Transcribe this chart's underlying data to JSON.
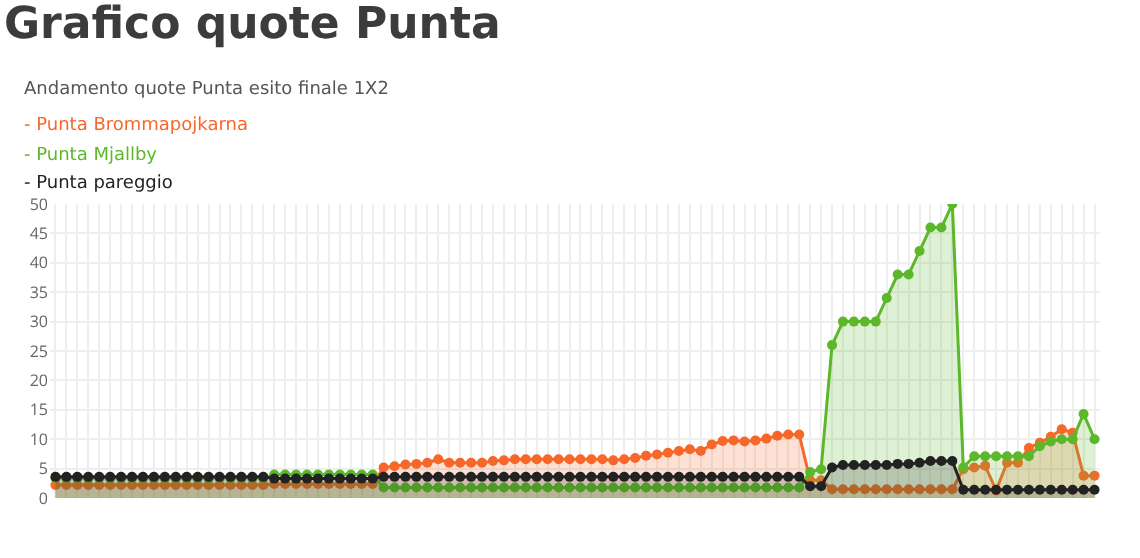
{
  "chart_data": {
    "type": "area",
    "title": "Grafico quote Punta",
    "subtitle": "Andamento quote Punta esito finale 1X2",
    "categories": [
      null,
      null,
      null,
      null,
      null,
      null,
      null,
      null,
      null,
      null,
      null,
      null,
      null,
      null,
      null,
      null,
      null,
      null,
      null,
      null,
      null,
      null,
      null,
      null,
      null,
      null,
      null,
      null,
      null,
      null,
      null,
      null,
      null,
      null,
      null,
      null,
      null,
      null,
      null,
      null,
      null,
      null,
      null,
      null,
      null,
      null,
      null,
      null,
      null,
      null,
      null,
      null,
      null,
      null,
      null,
      null,
      null,
      null,
      null,
      null,
      null,
      null,
      null,
      null,
      null,
      null,
      null,
      null,
      null,
      null,
      null,
      null,
      null,
      null,
      null,
      null,
      null,
      null,
      null,
      null,
      null,
      null,
      null,
      null,
      null,
      null,
      null,
      null,
      null,
      null,
      null,
      null,
      null,
      null,
      null,
      null
    ],
    "series": [
      {
        "name": "- Punta Brommapojkarna",
        "color": "#f7672a",
        "values": [
          2.2,
          2.2,
          2.2,
          2.2,
          2.2,
          2.2,
          2.2,
          2.2,
          2.2,
          2.2,
          2.2,
          2.2,
          2.2,
          2.2,
          2.2,
          2.2,
          2.2,
          2.2,
          2.2,
          2.2,
          2.4,
          2.4,
          2.4,
          2.4,
          2.4,
          2.4,
          2.4,
          2.4,
          2.4,
          2.4,
          5.2,
          5.4,
          5.7,
          5.8,
          6.0,
          6.6,
          6.0,
          6.0,
          6.0,
          6.0,
          6.3,
          6.4,
          6.6,
          6.6,
          6.6,
          6.6,
          6.6,
          6.6,
          6.6,
          6.6,
          6.6,
          6.4,
          6.6,
          6.8,
          7.2,
          7.4,
          7.7,
          8.0,
          8.3,
          8.0,
          9.1,
          9.7,
          9.8,
          9.6,
          9.8,
          10.1,
          10.6,
          10.8,
          10.8,
          3.0,
          3.0,
          1.5,
          1.5,
          1.5,
          1.5,
          1.5,
          1.5,
          1.5,
          1.5,
          1.5,
          1.5,
          1.5,
          1.5,
          4.9,
          5.2,
          5.5,
          1.3,
          6.0,
          6.0,
          8.5,
          9.4,
          10.4,
          11.7,
          11.1,
          3.8,
          3.8
        ]
      },
      {
        "name": "- Punta Mjallby",
        "color": "#5cb82a",
        "values": [
          3.4,
          3.4,
          3.4,
          3.4,
          3.4,
          3.4,
          3.4,
          3.4,
          3.4,
          3.4,
          3.4,
          3.4,
          3.4,
          3.4,
          3.4,
          3.4,
          3.4,
          3.4,
          3.4,
          3.4,
          4.0,
          4.0,
          4.0,
          4.0,
          4.0,
          4.0,
          4.0,
          4.0,
          4.0,
          4.0,
          1.8,
          1.8,
          1.8,
          1.8,
          1.8,
          1.8,
          1.8,
          1.8,
          1.8,
          1.8,
          1.8,
          1.8,
          1.8,
          1.8,
          1.8,
          1.8,
          1.8,
          1.8,
          1.8,
          1.8,
          1.8,
          1.8,
          1.8,
          1.8,
          1.8,
          1.8,
          1.8,
          1.8,
          1.8,
          1.8,
          1.8,
          1.8,
          1.8,
          1.8,
          1.8,
          1.8,
          1.8,
          1.8,
          1.8,
          4.4,
          4.9,
          26,
          30,
          30,
          30,
          30,
          34,
          38,
          38,
          42,
          46,
          46,
          50,
          5.2,
          7.1,
          7.1,
          7.1,
          7.1,
          7.1,
          7.1,
          8.8,
          9.6,
          10,
          10,
          14.3,
          10
        ]
      },
      {
        "name": "- Punta pareggio",
        "color": "#222222",
        "values": [
          3.6,
          3.6,
          3.6,
          3.6,
          3.6,
          3.6,
          3.6,
          3.6,
          3.6,
          3.6,
          3.6,
          3.6,
          3.6,
          3.6,
          3.6,
          3.6,
          3.6,
          3.6,
          3.6,
          3.6,
          3.3,
          3.3,
          3.3,
          3.3,
          3.3,
          3.3,
          3.3,
          3.3,
          3.3,
          3.3,
          3.6,
          3.6,
          3.6,
          3.6,
          3.6,
          3.6,
          3.6,
          3.6,
          3.6,
          3.6,
          3.6,
          3.6,
          3.6,
          3.6,
          3.6,
          3.6,
          3.6,
          3.6,
          3.6,
          3.6,
          3.6,
          3.6,
          3.6,
          3.6,
          3.6,
          3.6,
          3.6,
          3.6,
          3.6,
          3.6,
          3.6,
          3.6,
          3.6,
          3.6,
          3.6,
          3.6,
          3.6,
          3.6,
          3.6,
          2.0,
          2.0,
          5.2,
          5.6,
          5.6,
          5.6,
          5.6,
          5.6,
          5.8,
          5.8,
          6.0,
          6.3,
          6.3,
          6.3,
          1.4,
          1.4,
          1.4,
          1.4,
          1.4,
          1.4,
          1.4,
          1.4,
          1.4,
          1.4,
          1.4,
          1.4,
          1.4
        ]
      }
    ],
    "ylim": [
      0,
      50
    ],
    "yticks": [
      0,
      5,
      10,
      15,
      20,
      25,
      30,
      35,
      40,
      45,
      50
    ],
    "grid": true,
    "marker": "circle"
  }
}
